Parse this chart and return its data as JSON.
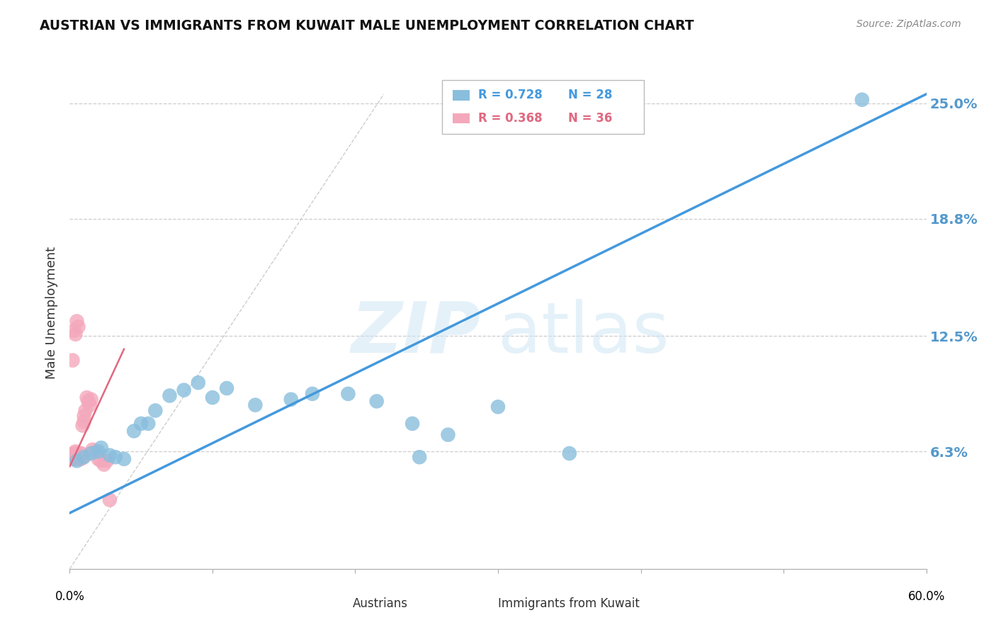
{
  "title": "AUSTRIAN VS IMMIGRANTS FROM KUWAIT MALE UNEMPLOYMENT CORRELATION CHART",
  "source": "Source: ZipAtlas.com",
  "ylabel": "Male Unemployment",
  "watermark": "ZIPatlas",
  "xmin": 0.0,
  "xmax": 0.6,
  "ymin": 0.0,
  "ymax": 0.275,
  "yticks": [
    0.063,
    0.125,
    0.188,
    0.25
  ],
  "ytick_labels": [
    "6.3%",
    "12.5%",
    "18.8%",
    "25.0%"
  ],
  "legend_blue_r": "0.728",
  "legend_blue_n": "28",
  "legend_pink_r": "0.368",
  "legend_pink_n": "36",
  "legend_label_blue": "Austrians",
  "legend_label_pink": "Immigrants from Kuwait",
  "blue_color": "#89bedd",
  "pink_color": "#f4a8bc",
  "trendline_blue_color": "#4499dd",
  "trendline_pink_color": "#e06880",
  "right_label_color": "#5599cc",
  "blue_x": [
    0.005,
    0.01,
    0.015,
    0.02,
    0.022,
    0.028,
    0.032,
    0.038,
    0.045,
    0.05,
    0.055,
    0.06,
    0.07,
    0.08,
    0.09,
    0.1,
    0.11,
    0.13,
    0.155,
    0.17,
    0.195,
    0.215,
    0.24,
    0.245,
    0.265,
    0.3,
    0.35,
    0.555
  ],
  "blue_y": [
    0.058,
    0.06,
    0.062,
    0.063,
    0.065,
    0.061,
    0.06,
    0.059,
    0.074,
    0.078,
    0.078,
    0.085,
    0.093,
    0.096,
    0.1,
    0.092,
    0.097,
    0.088,
    0.091,
    0.094,
    0.094,
    0.09,
    0.078,
    0.06,
    0.072,
    0.087,
    0.062,
    0.252
  ],
  "pink_x": [
    0.001,
    0.002,
    0.002,
    0.003,
    0.003,
    0.004,
    0.004,
    0.005,
    0.005,
    0.006,
    0.006,
    0.007,
    0.007,
    0.008,
    0.008,
    0.009,
    0.009,
    0.01,
    0.01,
    0.011,
    0.012,
    0.013,
    0.014,
    0.015,
    0.016,
    0.018,
    0.02,
    0.022,
    0.024,
    0.026,
    0.028,
    0.002,
    0.004,
    0.006,
    0.003,
    0.005
  ],
  "pink_y": [
    0.06,
    0.061,
    0.059,
    0.062,
    0.06,
    0.059,
    0.063,
    0.06,
    0.062,
    0.059,
    0.061,
    0.062,
    0.06,
    0.062,
    0.059,
    0.06,
    0.077,
    0.082,
    0.079,
    0.085,
    0.092,
    0.09,
    0.088,
    0.091,
    0.064,
    0.063,
    0.059,
    0.058,
    0.056,
    0.058,
    0.037,
    0.112,
    0.126,
    0.13,
    0.128,
    0.133
  ]
}
